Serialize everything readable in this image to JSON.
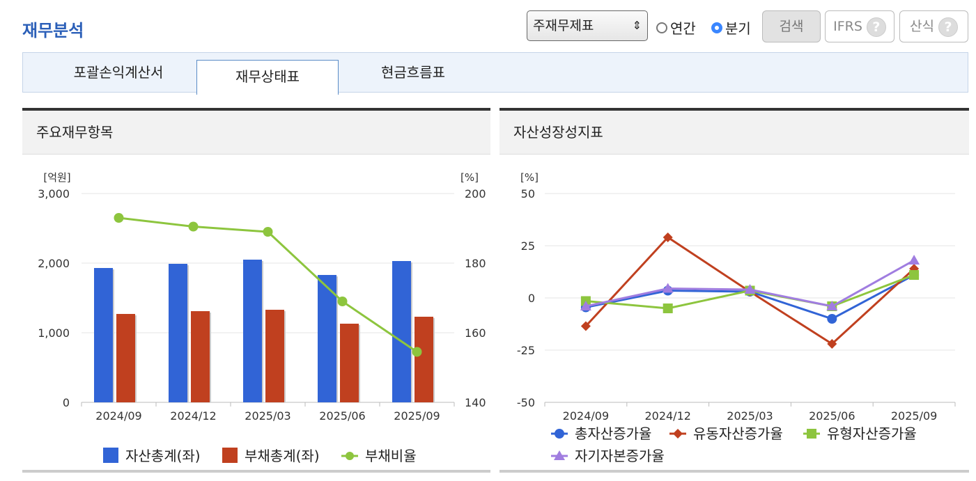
{
  "page": {
    "title": "재무분석"
  },
  "controls": {
    "select_value": "주재무제표",
    "radio_annual": "연간",
    "radio_quarter": "분기",
    "radio_selected": "분기",
    "search_label": "검색",
    "ifrs_label": "IFRS",
    "formula_label": "산식",
    "help_glyph": "?"
  },
  "tabs": [
    {
      "label": "포괄손익계산서",
      "active": false
    },
    {
      "label": "재무상태표",
      "active": true
    },
    {
      "label": "현금흐름표",
      "active": false
    }
  ],
  "panels": {
    "left_title": "주요재무항목",
    "right_title": "자산성장성지표"
  },
  "colors": {
    "asset": "#3164d6",
    "liab": "#c0401f",
    "ratio": "#8dc53e",
    "total_growth": "#3164d6",
    "current_growth": "#c0401f",
    "tangible_growth": "#8dc53e",
    "equity_growth": "#a07de0"
  },
  "chart_data": [
    {
      "type": "bar",
      "categories": [
        "2024/09",
        "2024/12",
        "2025/03",
        "2025/06",
        "2025/09"
      ],
      "y_left_unit": "[억원]",
      "y_right_unit": "[%]",
      "ylim_left": [
        0,
        3000
      ],
      "yticks_left": [
        "0",
        "1,000",
        "2,000",
        "3,000"
      ],
      "ylim_right": [
        140,
        200
      ],
      "yticks_right": [
        "140",
        "160",
        "180",
        "200"
      ],
      "series": [
        {
          "name": "자산총계(좌)",
          "kind": "bar",
          "axis": "left",
          "values": [
            1930,
            1990,
            2050,
            1830,
            2030
          ]
        },
        {
          "name": "부채총계(좌)",
          "kind": "bar",
          "axis": "left",
          "values": [
            1270,
            1310,
            1330,
            1130,
            1230
          ]
        },
        {
          "name": "부채비율",
          "kind": "line",
          "axis": "right",
          "values": [
            193,
            190.5,
            189,
            169,
            154.5
          ]
        }
      ],
      "legend_position": "bottom",
      "grid": true
    },
    {
      "type": "line",
      "categories": [
        "2024/09",
        "2024/12",
        "2025/03",
        "2025/06",
        "2025/09"
      ],
      "y_unit": "[%]",
      "ylim": [
        -50,
        50
      ],
      "yticks": [
        "-50",
        "-25",
        "0",
        "25",
        "50"
      ],
      "series": [
        {
          "name": "총자산증가율",
          "marker": "circle",
          "values": [
            -4.5,
            3.5,
            3.0,
            -10.0,
            11.0
          ]
        },
        {
          "name": "유동자산증가율",
          "marker": "diamond",
          "values": [
            -13.5,
            29.0,
            3.0,
            -22.0,
            14.0
          ]
        },
        {
          "name": "유형자산증가율",
          "marker": "square",
          "values": [
            -1.5,
            -5.0,
            3.5,
            -4.0,
            11.0
          ]
        },
        {
          "name": "자기자본증가율",
          "marker": "triangle",
          "values": [
            -4.0,
            4.5,
            4.0,
            -4.0,
            18.0
          ]
        }
      ],
      "legend_position": "bottom",
      "grid": true
    }
  ]
}
